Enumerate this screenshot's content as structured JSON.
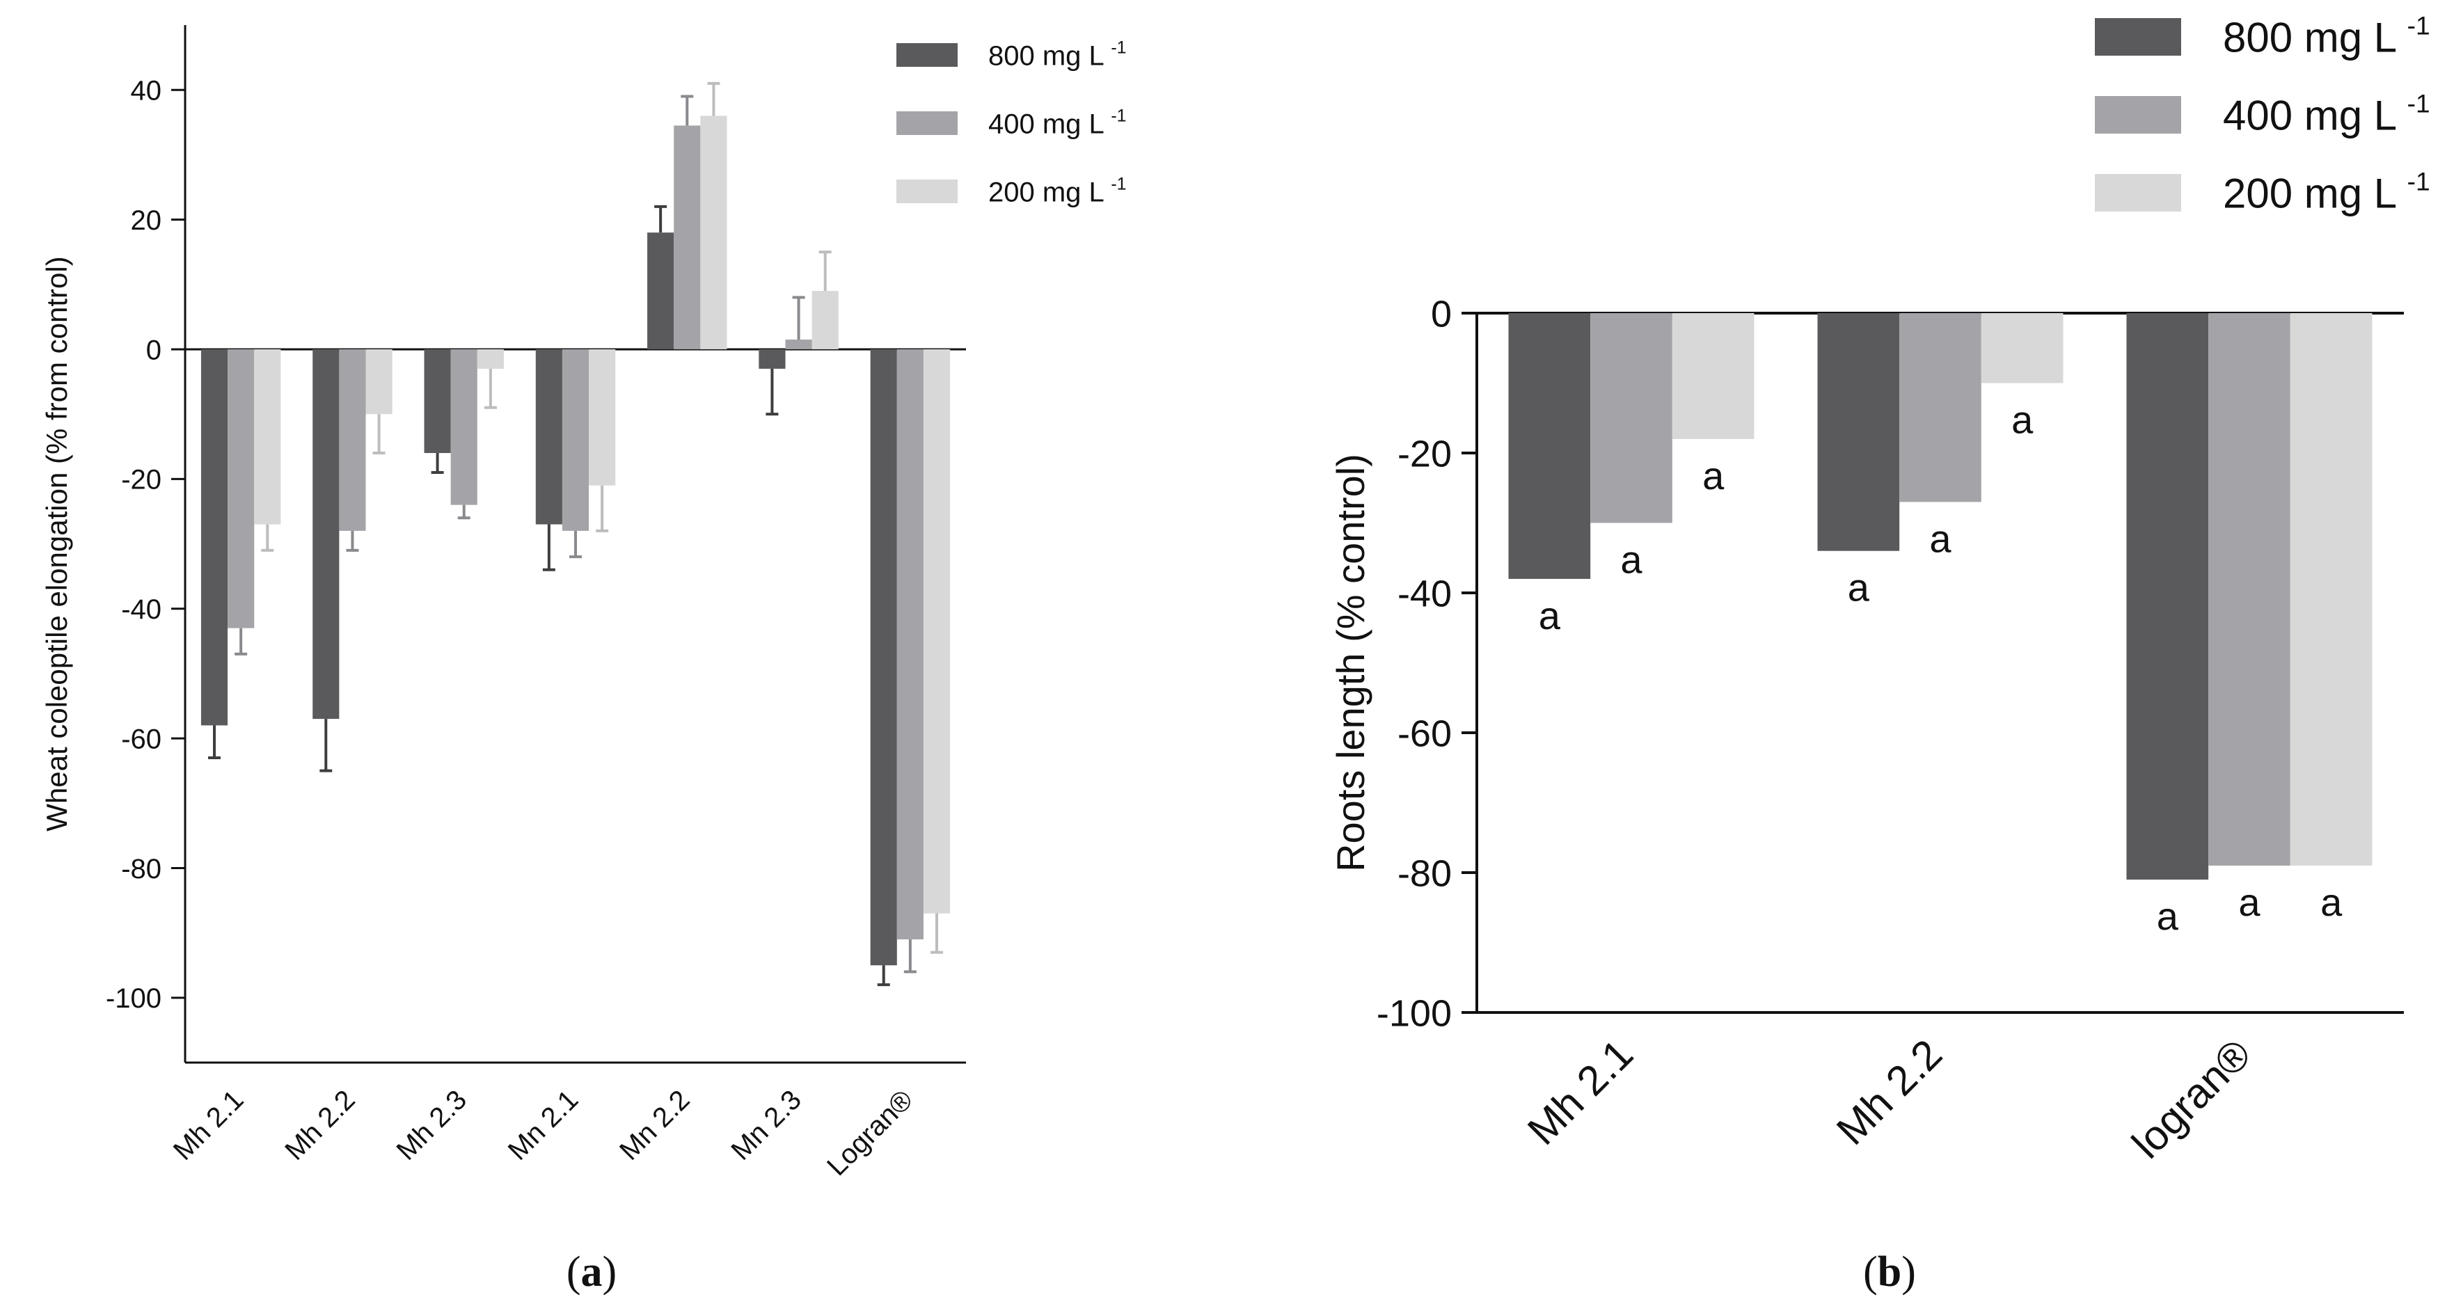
{
  "colors": {
    "s800": "#5a5a5c",
    "s400": "#a4a4a8",
    "s200": "#d8d8d9",
    "axis": "#111111",
    "err800": "#3e3e40",
    "err400": "#8a8a8e",
    "err200": "#bdbdbf"
  },
  "chart_data": [
    {
      "id": "a",
      "panel_label": "a",
      "type": "bar",
      "categories": [
        "Mh 2.1",
        "Mh 2.2",
        "Mh 2.3",
        "Mn 2.1",
        "Mn 2.2",
        "Mn 2.3",
        "Logran®"
      ],
      "series": [
        {
          "key": "s800",
          "name": "800 mg L",
          "superscript": "-1",
          "values": [
            -58,
            -57,
            -16,
            -27,
            18,
            -3,
            -95
          ],
          "errors": [
            5,
            8,
            3,
            7,
            4,
            7,
            3
          ]
        },
        {
          "key": "s400",
          "name": "400 mg L",
          "superscript": "-1",
          "values": [
            -43,
            -28,
            -24,
            -28,
            34.5,
            1.5,
            -91
          ],
          "errors": [
            4,
            3,
            2,
            4,
            4.5,
            6.5,
            5
          ]
        },
        {
          "key": "s200",
          "name": "200 mg L",
          "superscript": "-1",
          "values": [
            -27,
            -10,
            -3,
            -21,
            36,
            9,
            -87
          ],
          "errors": [
            4,
            6,
            6,
            7,
            5,
            6,
            6
          ]
        }
      ],
      "ylabel": "Wheat coleoptile elongation (% from control)",
      "xlabel": "",
      "ylim": [
        -110,
        50
      ],
      "yticks": [
        40,
        20,
        0,
        -20,
        -40,
        -60,
        -80,
        -100
      ],
      "legend_position": "top-right"
    },
    {
      "id": "b",
      "panel_label": "b",
      "type": "bar",
      "categories": [
        "Mh 2.1",
        "Mh 2.2",
        "logran®"
      ],
      "series": [
        {
          "key": "s800",
          "name": "800 mg L",
          "superscript": "-1",
          "values": [
            -38,
            -34,
            -81
          ],
          "annotations": [
            "a",
            "a",
            "a"
          ]
        },
        {
          "key": "s400",
          "name": "400 mg L",
          "superscript": "-1",
          "values": [
            -30,
            -27,
            -79
          ],
          "annotations": [
            "a",
            "a",
            "a"
          ]
        },
        {
          "key": "s200",
          "name": "200 mg L",
          "superscript": "-1",
          "values": [
            -18,
            -10,
            -79
          ],
          "annotations": [
            "a",
            "a",
            "a"
          ]
        }
      ],
      "ylabel": "Roots length (% control)",
      "xlabel": "",
      "ylim": [
        -100,
        0
      ],
      "yticks": [
        0,
        -20,
        -40,
        -60,
        -80,
        -100
      ],
      "legend_position": "top-right"
    }
  ]
}
